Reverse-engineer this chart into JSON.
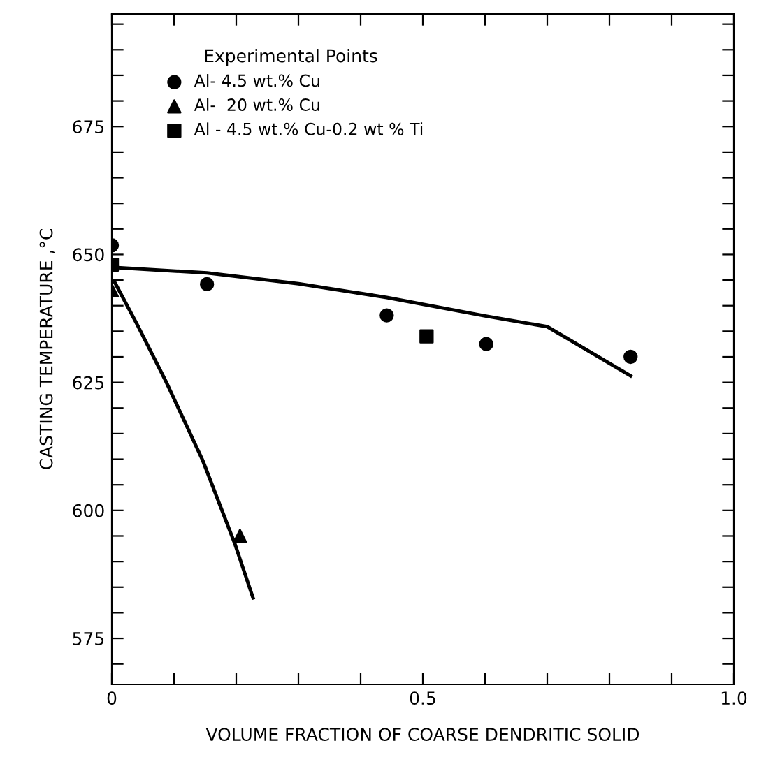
{
  "chart_data": {
    "type": "scatter",
    "xlabel": "VOLUME FRACTION OF COARSE DENDRITIC SOLID",
    "ylabel": "CASTING TEMPERATURE ,°C",
    "legend_title": "Experimental Points",
    "legend": "top left",
    "grid": false,
    "xlim": [
      0,
      1.0
    ],
    "ylim": [
      566,
      697
    ],
    "xticks": [
      0,
      {
        "value": 0.1,
        "label": null
      },
      {
        "value": 0.2,
        "label": null
      },
      {
        "value": 0.3,
        "label": null
      },
      {
        "value": 0.4,
        "label": null
      },
      {
        "value": 0.5,
        "label": "0.5"
      },
      {
        "value": 0.6,
        "label": null
      },
      {
        "value": 0.7,
        "label": null
      },
      {
        "value": 0.8,
        "label": null
      },
      {
        "value": 0.9,
        "label": null
      },
      {
        "value": 1.0,
        "label": "1.0"
      }
    ],
    "yticks": [
      {
        "value": 570,
        "label": null
      },
      575,
      {
        "value": 580,
        "label": null
      },
      {
        "value": 585,
        "label": null
      },
      {
        "value": 590,
        "label": null
      },
      {
        "value": 595,
        "label": null
      },
      600,
      {
        "value": 605,
        "label": null
      },
      {
        "value": 610,
        "label": null
      },
      {
        "value": 615,
        "label": null
      },
      {
        "value": 620,
        "label": null
      },
      625,
      {
        "value": 630,
        "label": null
      },
      {
        "value": 635,
        "label": null
      },
      {
        "value": 640,
        "label": null
      },
      {
        "value": 645,
        "label": null
      },
      650,
      {
        "value": 655,
        "label": null
      },
      {
        "value": 660,
        "label": null
      },
      {
        "value": 665,
        "label": null
      },
      {
        "value": 670,
        "label": null
      },
      675,
      {
        "value": 680,
        "label": null
      },
      {
        "value": 685,
        "label": null
      },
      {
        "value": 690,
        "label": null
      },
      {
        "value": 695,
        "label": null
      }
    ],
    "series": [
      {
        "name": "Al- 4.5 wt.% Cu",
        "marker": "circle",
        "color": "#000000",
        "x": [
          0,
          0.153,
          0.442,
          0.602,
          0.834
        ],
        "values": [
          651.8,
          644.2,
          638.1,
          632.5,
          630.0
        ]
      },
      {
        "name": "Al-  20 wt.% Cu",
        "marker": "triangle",
        "color": "#000000",
        "x": [
          0,
          0.206
        ],
        "values": [
          643,
          595
        ]
      },
      {
        "name": "Al - 4.5 wt.% Cu-0.2 wt % Ti",
        "marker": "square",
        "color": "#000000",
        "x": [
          0,
          0.506
        ],
        "values": [
          648,
          634
        ]
      },
      {
        "type": "line",
        "marker": "none",
        "line_style": "solid",
        "color": "#000000",
        "x": [
          0,
          0.153,
          0.3,
          0.442,
          0.6,
          0.7,
          0.834
        ],
        "values": [
          647.5,
          646.4,
          644.3,
          641.6,
          638,
          635.9,
          626.3
        ]
      },
      {
        "type": "line",
        "marker": "none",
        "line_style": "solid",
        "color": "#000000",
        "x": [
          0.005,
          0.04,
          0.087,
          0.146,
          0.198,
          0.227
        ],
        "values": [
          644.5,
          636.5,
          625.2,
          609.8,
          593.4,
          582.9
        ]
      }
    ]
  }
}
